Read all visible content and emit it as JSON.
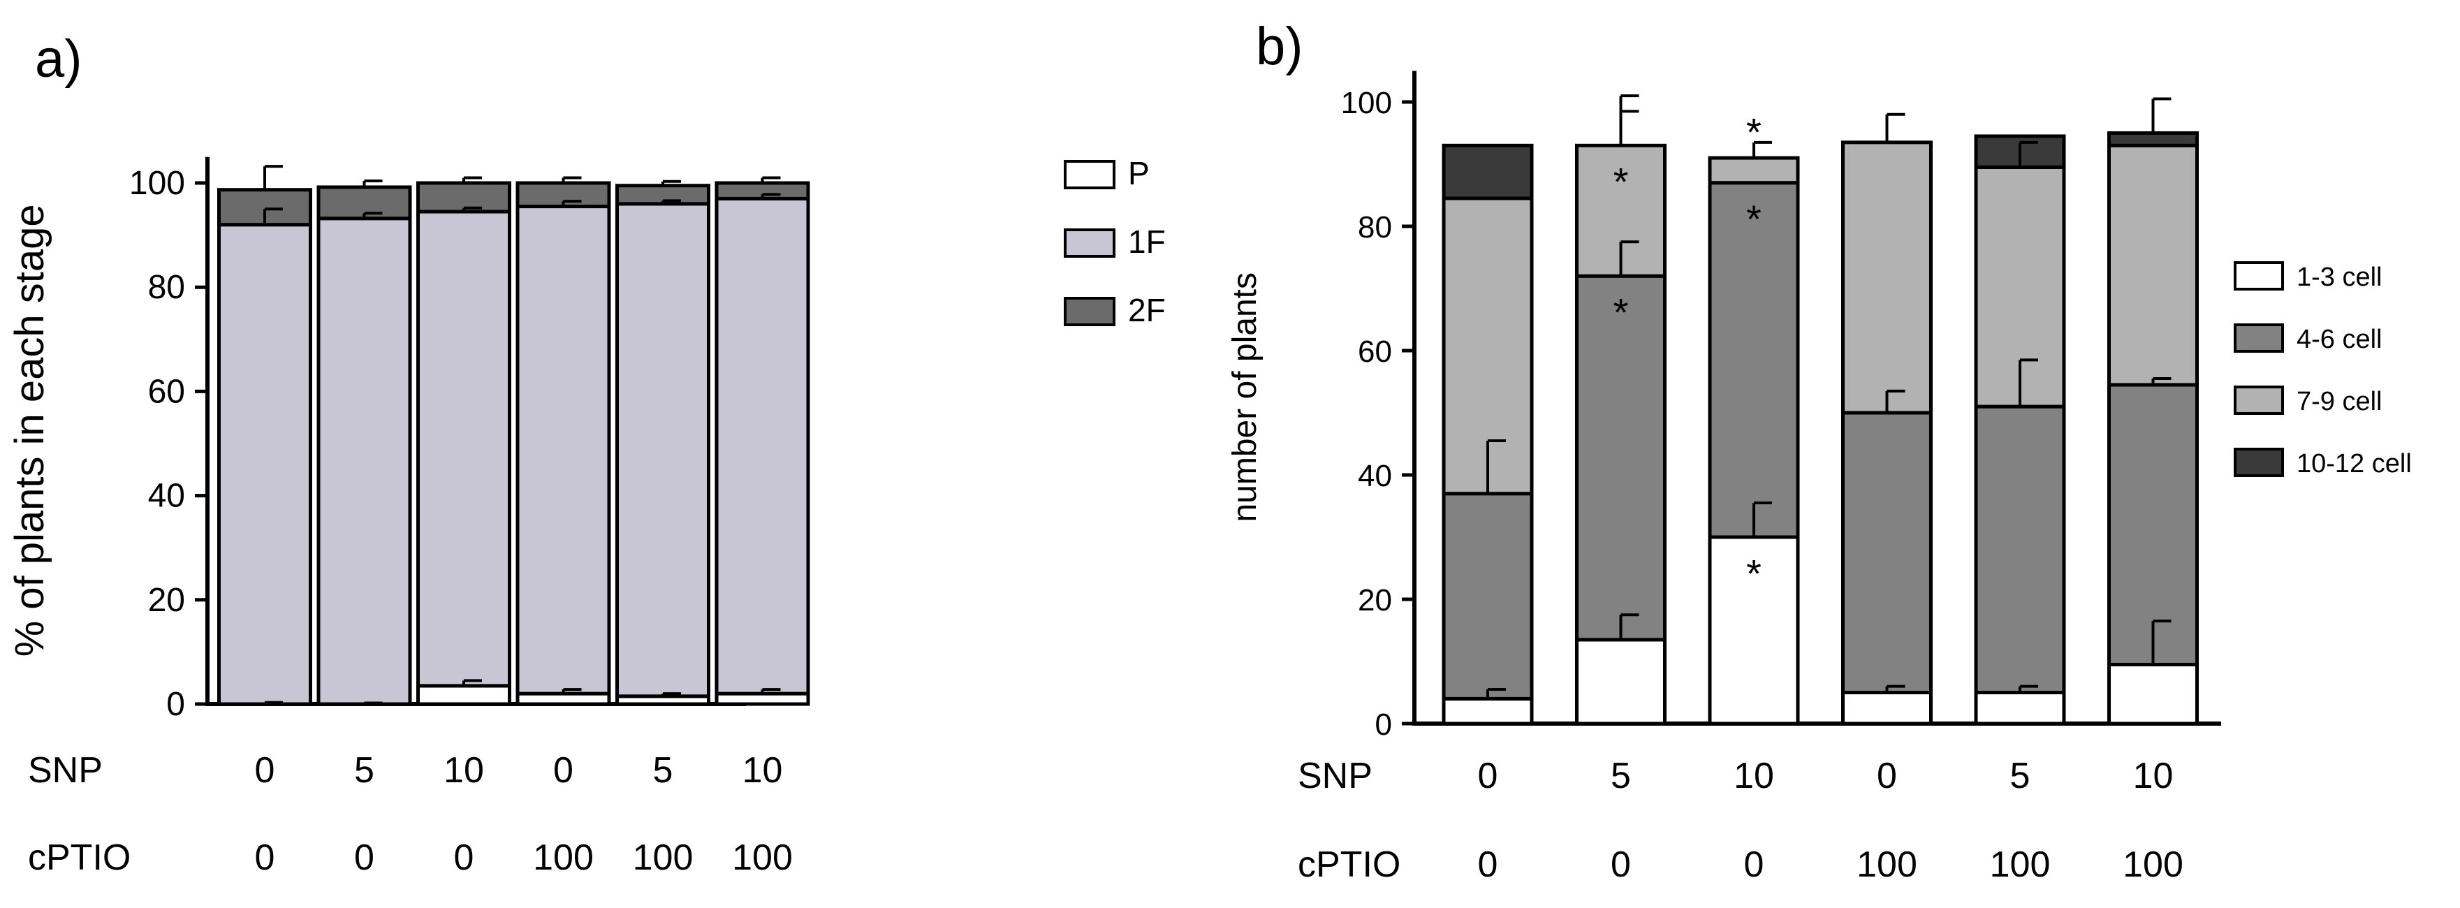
{
  "chart_data": [
    {
      "type": "bar",
      "stacked": true,
      "panel_label": "a)",
      "ylabel": "% of plants in each stage",
      "ylim": [
        0,
        105
      ],
      "yticks": [
        0,
        20,
        40,
        60,
        80,
        100
      ],
      "row_labels": [
        "SNP",
        "cPTIO"
      ],
      "snp": [
        "0",
        "5",
        "10",
        "0",
        "5",
        "10"
      ],
      "cptio": [
        "0",
        "0",
        "0",
        "100",
        "100",
        "100"
      ],
      "series": [
        {
          "name": "P",
          "color": "#ffffff",
          "values": [
            0,
            0,
            3.5,
            2.0,
            1.5,
            2.0
          ],
          "errors": [
            0.3,
            0.2,
            1.0,
            0.8,
            0.5,
            0.8
          ]
        },
        {
          "name": "1F",
          "color": "#c8c6d4",
          "values": [
            92,
            93.2,
            91,
            93.5,
            94.5,
            95
          ],
          "errors": [
            3.0,
            1.0,
            0.7,
            1.0,
            0.6,
            0.8
          ]
        },
        {
          "name": "2F",
          "color": "#6b6b6b",
          "values": [
            6.7,
            6.0,
            5.5,
            4.5,
            3.5,
            3.0
          ],
          "errors": [
            4.5,
            1.2,
            1.0,
            1.0,
            0.8,
            1.0
          ]
        }
      ]
    },
    {
      "type": "bar",
      "stacked": true,
      "panel_label": "b)",
      "ylabel": "number of plants",
      "ylim": [
        0,
        105
      ],
      "yticks": [
        0,
        20,
        40,
        60,
        80,
        100
      ],
      "row_labels": [
        "SNP",
        "cPTIO"
      ],
      "snp": [
        "0",
        "5",
        "10",
        "0",
        "5",
        "10"
      ],
      "cptio": [
        "0",
        "0",
        "0",
        "100",
        "100",
        "100"
      ],
      "series": [
        {
          "name": "1-3 cell",
          "color": "#ffffff",
          "values": [
            4,
            13.5,
            30,
            5,
            5,
            9.5
          ],
          "errors": [
            1.5,
            4.0,
            5.5,
            1.0,
            1.0,
            7.0
          ]
        },
        {
          "name": "4-6 cell",
          "color": "#828282",
          "values": [
            33,
            58.5,
            57,
            45,
            46,
            45
          ],
          "errors": [
            8.5,
            5.5,
            0,
            3.5,
            7.5,
            1.0
          ]
        },
        {
          "name": "7-9 cell",
          "color": "#b2b2b2",
          "values": [
            47.5,
            21,
            4,
            43.5,
            38.5,
            38.5
          ],
          "errors": [
            0,
            5.5,
            0,
            0,
            4.0,
            0
          ]
        },
        {
          "name": "10-12 cell",
          "color": "#3a3a3a",
          "values": [
            8.5,
            0,
            0,
            0,
            5,
            2
          ],
          "errors": [
            0,
            8.0,
            2.5,
            4.5,
            0,
            5.5
          ]
        }
      ],
      "significance": [
        {
          "bar": 1,
          "y": 87,
          "label": "*"
        },
        {
          "bar": 1,
          "y": 66,
          "label": "*"
        },
        {
          "bar": 2,
          "y": 95,
          "label": "*"
        },
        {
          "bar": 2,
          "y": 81,
          "label": "*"
        },
        {
          "bar": 2,
          "y": 24,
          "label": "*"
        }
      ]
    }
  ]
}
